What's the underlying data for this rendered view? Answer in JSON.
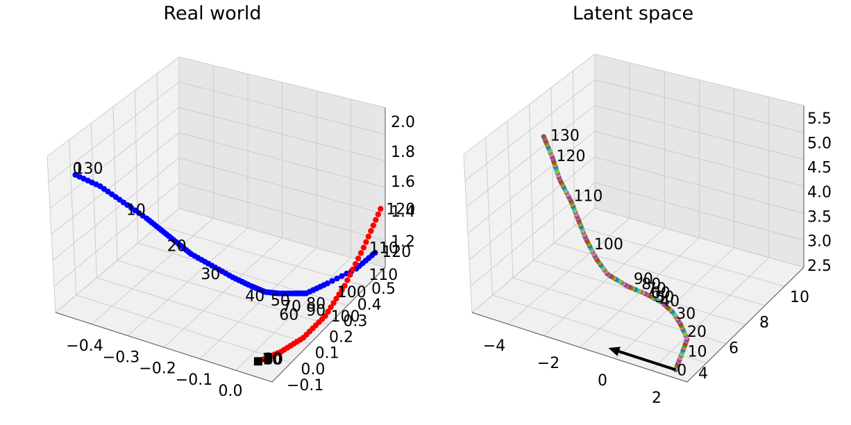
{
  "chart_data": [
    {
      "type": "scatter",
      "title": "Real world",
      "x_ticks": [
        "−0.4",
        "−0.3",
        "−0.2",
        "−0.1",
        "0.0"
      ],
      "y_ticks": [
        "−0.1",
        "0.0",
        "0.1",
        "0.2",
        "0.3",
        "0.4",
        "0.5"
      ],
      "z_ticks": [
        "1.2",
        "1.4",
        "1.6",
        "1.8",
        "2.0"
      ],
      "xlim": [
        -0.47,
        0.05
      ],
      "ylim": [
        -0.12,
        0.56
      ],
      "zlim": [
        1.05,
        2.05
      ],
      "series": [
        {
          "color": "#0000ff",
          "points": [
            [
              -0.45,
              -0.02,
              1.85
            ],
            [
              -0.4,
              0.0,
              1.8
            ],
            [
              -0.35,
              0.01,
              1.73
            ],
            [
              -0.3,
              0.02,
              1.66
            ],
            [
              -0.27,
              0.03,
              1.6
            ],
            [
              -0.24,
              0.04,
              1.54
            ],
            [
              -0.21,
              0.05,
              1.48
            ],
            [
              -0.17,
              0.07,
              1.42
            ],
            [
              -0.13,
              0.09,
              1.36
            ],
            [
              -0.1,
              0.12,
              1.3
            ],
            [
              -0.08,
              0.15,
              1.25
            ],
            [
              -0.07,
              0.2,
              1.2
            ],
            [
              -0.06,
              0.26,
              1.15
            ],
            [
              -0.05,
              0.3,
              1.12
            ],
            [
              -0.02,
              0.35,
              1.16
            ],
            [
              0.02,
              0.42,
              1.22
            ],
            [
              0.04,
              0.48,
              1.28
            ]
          ],
          "labels": [
            {
              "text": "0",
              "i": 0
            },
            {
              "text": "130",
              "i": 0
            },
            {
              "text": "10",
              "i": 2
            },
            {
              "text": "20",
              "i": 4
            },
            {
              "text": "30",
              "i": 6
            },
            {
              "text": "40",
              "i": 8
            },
            {
              "text": "50",
              "i": 9
            },
            {
              "text": "60",
              "i": 10
            },
            {
              "text": "70",
              "i": 11
            },
            {
              "text": "80",
              "i": 13
            },
            {
              "text": "90",
              "i": 13
            },
            {
              "text": "100",
              "i": 14
            },
            {
              "text": "110",
              "i": 15
            },
            {
              "text": "120",
              "i": 16
            }
          ]
        },
        {
          "color": "#ff0000",
          "points": [
            [
              0.0,
              -0.08,
              1.1
            ],
            [
              0.02,
              0.0,
              1.1
            ],
            [
              0.03,
              0.1,
              1.1
            ],
            [
              0.04,
              0.2,
              1.15
            ],
            [
              0.045,
              0.3,
              1.25
            ],
            [
              0.05,
              0.4,
              1.4
            ],
            [
              0.05,
              0.5,
              1.55
            ]
          ],
          "labels": [
            {
              "text": "10",
              "i": 0
            },
            {
              "text": "20",
              "i": 0
            },
            {
              "text": "30",
              "i": 0
            },
            {
              "text": "40",
              "i": 0
            },
            {
              "text": "50",
              "i": 0
            },
            {
              "text": "60",
              "i": 0
            },
            {
              "text": "70",
              "i": 0
            },
            {
              "text": "80",
              "i": 0
            },
            {
              "text": "90",
              "i": 0
            },
            {
              "text": "100",
              "i": 3
            },
            {
              "text": "110",
              "i": 5
            },
            {
              "text": "120",
              "i": 6
            }
          ]
        },
        {
          "color": "#000000",
          "marker": "square",
          "points": [
            [
              0.0,
              -0.08,
              1.1
            ]
          ]
        }
      ]
    },
    {
      "type": "scatter",
      "title": "Latent space",
      "x_ticks": [
        "−4",
        "−2",
        "0",
        "2"
      ],
      "y_ticks": [
        "4",
        "6",
        "8",
        "10"
      ],
      "z_ticks": [
        "2.5",
        "3.0",
        "3.5",
        "4.0",
        "4.5",
        "5.0",
        "5.5"
      ],
      "xlim": [
        -5,
        3
      ],
      "ylim": [
        2.5,
        11
      ],
      "zlim": [
        2.5,
        5.6
      ],
      "colors": [
        "#1f77b4",
        "#ff7f0e",
        "#2ca02c",
        "#d62728",
        "#9467bd",
        "#8c564b",
        "#e377c2",
        "#7f7f7f",
        "#bcbd22",
        "#17becf"
      ],
      "series": [
        {
          "name": "",
          "path": [
            [
              2.3,
              3.0,
              2.5
            ],
            [
              2.2,
              3.6,
              2.62
            ],
            [
              2.0,
              4.4,
              2.72
            ],
            [
              1.5,
              4.9,
              2.8
            ],
            [
              1.0,
              5.3,
              2.86
            ],
            [
              0.5,
              5.5,
              2.92
            ],
            [
              0.0,
              5.4,
              3.02
            ],
            [
              -0.5,
              5.0,
              3.2
            ],
            [
              -1.0,
              4.6,
              3.45
            ],
            [
              -1.4,
              4.6,
              3.7
            ],
            [
              -1.8,
              4.7,
              4.0
            ],
            [
              -2.1,
              4.8,
              4.3
            ],
            [
              -2.4,
              4.9,
              4.6
            ],
            [
              -2.9,
              5.1,
              4.9
            ],
            [
              -3.3,
              5.4,
              5.2
            ],
            [
              -3.7,
              5.6,
              5.5
            ]
          ],
          "n_points": 136,
          "labels": [
            {
              "text": "0",
              "t": 0.0
            },
            {
              "text": "10",
              "t": 0.074
            },
            {
              "text": "20",
              "t": 0.147
            },
            {
              "text": "30",
              "t": 0.22
            },
            {
              "text": "40",
              "t": 0.29
            },
            {
              "text": "50",
              "t": 0.3
            },
            {
              "text": "60",
              "t": 0.31
            },
            {
              "text": "70",
              "t": 0.32
            },
            {
              "text": "80",
              "t": 0.335
            },
            {
              "text": "90",
              "t": 0.38
            },
            {
              "text": "100",
              "t": 0.58
            },
            {
              "text": "110",
              "t": 0.76
            },
            {
              "text": "120",
              "t": 0.91
            },
            {
              "text": "130",
              "t": 0.99
            }
          ]
        }
      ],
      "arrow": {
        "from": [
          2.3,
          3.0,
          2.5
        ],
        "to": [
          -0.2,
          3.0,
          2.5
        ]
      }
    }
  ]
}
